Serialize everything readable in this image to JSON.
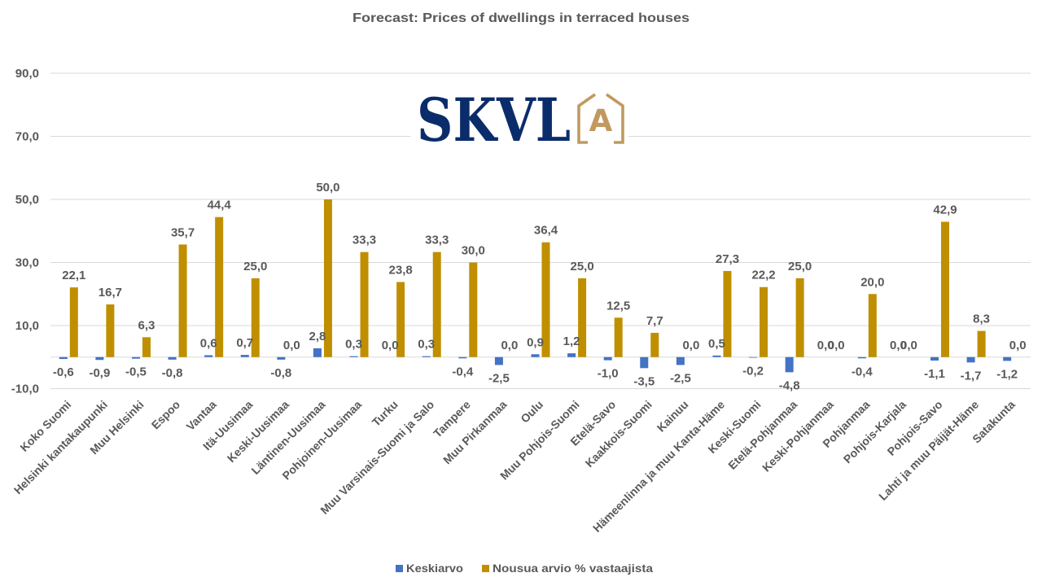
{
  "chart_data": {
    "type": "bar",
    "title": "Forecast: Prices of dwellings in terraced houses",
    "xlabel": "",
    "ylabel": "",
    "ylim": [
      -10,
      90
    ],
    "yticks": [
      -10,
      10,
      30,
      50,
      70,
      90
    ],
    "ytick_labels": [
      "-10,0",
      "10,0",
      "30,0",
      "50,0",
      "70,0",
      "90,0"
    ],
    "grid": true,
    "legend_position": "bottom",
    "decimal_separator": ",",
    "data_labels": true,
    "categories": [
      "Koko Suomi",
      "Helsinki kantakaupunki",
      "Muu Helsinki",
      "Espoo",
      "Vantaa",
      "Itä-Uusimaa",
      "Keski-Uusimaa",
      "Läntinen-Uusimaa",
      "Pohjoinen-Uusimaa",
      "Turku",
      "Muu Varsinais-Suomi ja Salo",
      "Tampere",
      "Muu Pirkanmaa",
      "Oulu",
      "Muu Pohjois-Suomi",
      "Etelä-Savo",
      "Kaakkois-Suomi",
      "Kainuu",
      "Hämeenlinna ja muu Kanta-Häme",
      "Keski-Suomi",
      "Etelä-Pohjanmaa",
      "Keski-Pohjanmaa",
      "Pohjanmaa",
      "Pohjois-Karjala",
      "Pohjois-Savo",
      "Lahti ja muu Päijät-Häme",
      "Satakunta"
    ],
    "series": [
      {
        "name": "Keskiarvo",
        "color": "#4472C4",
        "values": [
          -0.6,
          -0.9,
          -0.5,
          -0.8,
          0.6,
          0.7,
          -0.8,
          2.8,
          0.3,
          0.0,
          0.3,
          -0.4,
          -2.5,
          0.9,
          1.2,
          -1.0,
          -3.5,
          -2.5,
          0.5,
          -0.2,
          -4.8,
          0.0,
          -0.4,
          0.0,
          -1.1,
          -1.7,
          -1.2
        ]
      },
      {
        "name": "Nousua arvio % vastaajista",
        "color": "#BF8F00",
        "values": [
          22.1,
          16.7,
          6.3,
          35.7,
          44.4,
          25.0,
          0.0,
          50.0,
          33.3,
          23.8,
          33.3,
          30.0,
          0.0,
          36.4,
          25.0,
          12.5,
          7.7,
          0.0,
          27.3,
          22.2,
          25.0,
          0.0,
          20.0,
          0.0,
          42.9,
          8.3,
          0.0
        ]
      }
    ]
  },
  "logo": {
    "text": "SKVL",
    "icon_letter": "A",
    "text_color": "#0B2C6B",
    "icon_color": "#C1995F"
  }
}
